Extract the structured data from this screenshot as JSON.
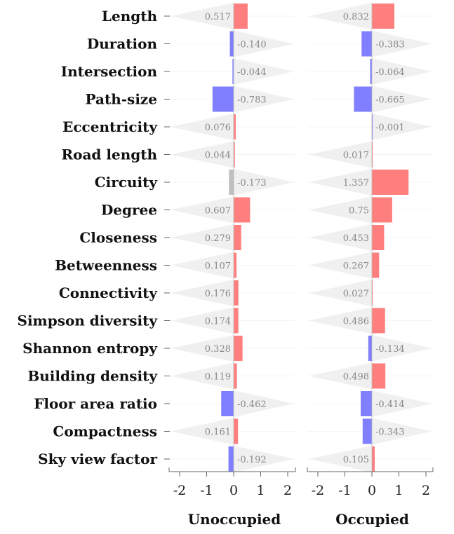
{
  "chart_data": {
    "type": "bar",
    "orientation": "horizontal",
    "categories": [
      "Length",
      "Duration",
      "Intersection",
      "Path-size",
      "Eccentricity",
      "Road length",
      "Circuity",
      "Degree",
      "Closeness",
      "Betweenness",
      "Connectivity",
      "Simpson diversity",
      "Shannon entropy",
      "Building density",
      "Floor area ratio",
      "Compactness",
      "Sky view factor"
    ],
    "panels": [
      {
        "title": "Unoccupied",
        "values": [
          0.517,
          -0.14,
          -0.044,
          -0.783,
          0.076,
          0.044,
          -0.173,
          0.607,
          0.279,
          0.107,
          0.176,
          0.174,
          0.328,
          0.119,
          -0.462,
          0.161,
          -0.192
        ],
        "value_labels": [
          "0.517",
          "-0.140",
          "-0.044",
          "-0.783",
          "0.076",
          "0.044",
          "-0.173",
          "0.607",
          "0.279",
          "0.107",
          "0.176",
          "0.174",
          "0.328",
          "0.119",
          "-0.462",
          "0.161",
          "-0.192"
        ],
        "not_significant": [
          6
        ]
      },
      {
        "title": "Occupied",
        "values": [
          0.832,
          -0.383,
          -0.064,
          -0.665,
          -0.001,
          0.017,
          1.357,
          0.75,
          0.453,
          0.267,
          0.027,
          0.486,
          -0.134,
          0.498,
          -0.414,
          -0.343,
          0.105
        ],
        "value_labels": [
          "0.832",
          "-0.383",
          "-0.064",
          "-0.665",
          "-0.001",
          "0.017",
          "1.357",
          "0.75",
          "0.453",
          "0.267",
          "0.027",
          "0.486",
          "-0.134",
          "0.498",
          "-0.414",
          "-0.343",
          "0.105"
        ],
        "not_significant": []
      }
    ],
    "xlim": [
      -2.2,
      2.2
    ],
    "xticks": [
      -2,
      -1,
      0,
      1,
      2
    ],
    "xtick_labels": [
      "-2",
      "-1",
      "0",
      "1",
      "2"
    ],
    "colors": {
      "positive": "#ff7f7f",
      "negative": "#7f7fff",
      "not_significant": "#bfbfbf",
      "band": "#f0f0f0",
      "axis": "#666666"
    }
  }
}
